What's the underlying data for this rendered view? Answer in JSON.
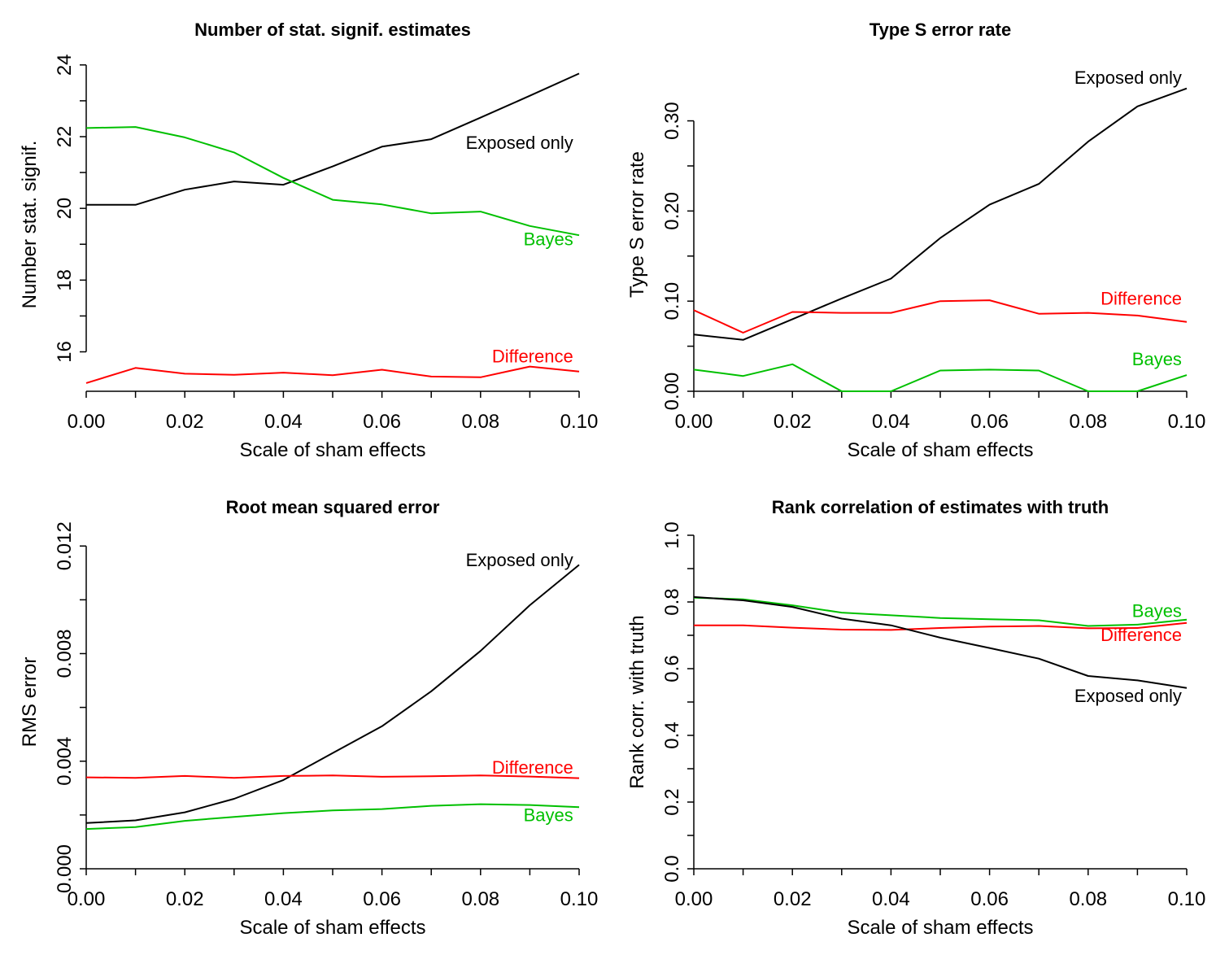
{
  "colors": {
    "exposed": "#000000",
    "bayes": "#00c000",
    "difference": "#ff0000"
  },
  "chart_data": [
    {
      "type": "line",
      "title": "Number of stat. signif. estimates",
      "xlabel": "Scale of sham effects",
      "ylabel": "Number stat. signif.",
      "xlim": [
        0,
        0.1
      ],
      "ylim": [
        14.9,
        24.2
      ],
      "xticks": [
        0,
        0.02,
        0.04,
        0.06,
        0.08,
        0.1
      ],
      "xtick_labels": [
        "0.00",
        "0.02",
        "0.04",
        "0.06",
        "0.08",
        "0.10"
      ],
      "yticks": [
        16,
        18,
        20,
        22,
        24
      ],
      "ytick_labels": [
        "16",
        "18",
        "20",
        "22",
        "24"
      ],
      "x": [
        0,
        0.01,
        0.02,
        0.03,
        0.04,
        0.05,
        0.06,
        0.07,
        0.08,
        0.09,
        0.1
      ],
      "series": [
        {
          "name": "Exposed only",
          "color_key": "exposed",
          "values": [
            20.1,
            20.1,
            20.52,
            20.75,
            20.66,
            21.17,
            21.72,
            21.93,
            22.53,
            23.14,
            23.76
          ]
        },
        {
          "name": "Bayes",
          "color_key": "bayes",
          "values": [
            22.24,
            22.27,
            21.98,
            21.56,
            20.85,
            20.24,
            20.11,
            19.86,
            19.91,
            19.51,
            19.25
          ]
        },
        {
          "name": "Difference",
          "color_key": "difference",
          "values": [
            15.13,
            15.55,
            15.39,
            15.36,
            15.42,
            15.35,
            15.5,
            15.31,
            15.29,
            15.59,
            15.45
          ]
        }
      ]
    },
    {
      "type": "line",
      "title": "Type S error rate",
      "xlabel": "Scale of sham effects",
      "ylabel": "Type S error rate",
      "xlim": [
        0,
        0.1
      ],
      "ylim": [
        0,
        0.37
      ],
      "xticks": [
        0,
        0.02,
        0.04,
        0.06,
        0.08,
        0.1
      ],
      "xtick_labels": [
        "0.00",
        "0.02",
        "0.04",
        "0.06",
        "0.08",
        "0.10"
      ],
      "yticks": [
        0,
        0.1,
        0.2,
        0.3
      ],
      "ytick_labels": [
        "0.00",
        "0.10",
        "0.20",
        "0.30"
      ],
      "x": [
        0,
        0.01,
        0.02,
        0.03,
        0.04,
        0.05,
        0.06,
        0.07,
        0.08,
        0.09,
        0.1
      ],
      "series": [
        {
          "name": "Exposed only",
          "color_key": "exposed",
          "values": [
            0.063,
            0.057,
            0.08,
            0.103,
            0.125,
            0.17,
            0.207,
            0.23,
            0.277,
            0.316,
            0.336
          ]
        },
        {
          "name": "Difference",
          "color_key": "difference",
          "values": [
            0.09,
            0.065,
            0.088,
            0.087,
            0.087,
            0.1,
            0.101,
            0.086,
            0.087,
            0.084,
            0.077
          ]
        },
        {
          "name": "Bayes",
          "color_key": "bayes",
          "values": [
            0.024,
            0.017,
            0.03,
            0,
            0,
            0.023,
            0.024,
            0.023,
            0,
            0,
            0.018
          ]
        }
      ]
    },
    {
      "type": "line",
      "title": "Root mean squared error",
      "xlabel": "Scale of sham effects",
      "ylabel": "RMS error",
      "xlim": [
        0,
        0.1
      ],
      "ylim": [
        0,
        0.0124
      ],
      "xticks": [
        0,
        0.02,
        0.04,
        0.06,
        0.08,
        0.1
      ],
      "xtick_labels": [
        "0.00",
        "0.02",
        "0.04",
        "0.06",
        "0.08",
        "0.10"
      ],
      "yticks": [
        0,
        0.004,
        0.008,
        0.012
      ],
      "ytick_labels": [
        "0.000",
        "0.004",
        "0.008",
        "0.012"
      ],
      "x": [
        0,
        0.01,
        0.02,
        0.03,
        0.04,
        0.05,
        0.06,
        0.07,
        0.08,
        0.09,
        0.1
      ],
      "series": [
        {
          "name": "Exposed only",
          "color_key": "exposed",
          "values": [
            0.0017,
            0.0018,
            0.0021,
            0.0026,
            0.0033,
            0.0043,
            0.0053,
            0.0066,
            0.0081,
            0.0098,
            0.0113
          ]
        },
        {
          "name": "Difference",
          "color_key": "difference",
          "values": [
            0.0034,
            0.00338,
            0.00345,
            0.00338,
            0.00345,
            0.00347,
            0.00342,
            0.00344,
            0.00347,
            0.00343,
            0.00337
          ]
        },
        {
          "name": "Bayes",
          "color_key": "bayes",
          "values": [
            0.00148,
            0.00155,
            0.00178,
            0.00193,
            0.00207,
            0.00217,
            0.00222,
            0.00234,
            0.0024,
            0.00237,
            0.00229
          ]
        }
      ]
    },
    {
      "type": "line",
      "title": "Rank correlation of estimates with truth",
      "xlabel": "Scale of sham effects",
      "ylabel": "Rank corr. with truth",
      "xlim": [
        0,
        0.1
      ],
      "ylim": [
        0,
        1
      ],
      "xticks": [
        0,
        0.02,
        0.04,
        0.06,
        0.08,
        0.1
      ],
      "xtick_labels": [
        "0.00",
        "0.02",
        "0.04",
        "0.06",
        "0.08",
        "0.10"
      ],
      "yticks": [
        0,
        0.2,
        0.4,
        0.6,
        0.8,
        1
      ],
      "ytick_labels": [
        "0.0",
        "0.2",
        "0.4",
        "0.6",
        "0.8",
        "1.0"
      ],
      "x": [
        0,
        0.01,
        0.02,
        0.03,
        0.04,
        0.05,
        0.06,
        0.07,
        0.08,
        0.09,
        0.1
      ],
      "series": [
        {
          "name": "Bayes",
          "color_key": "bayes",
          "values": [
            0.813,
            0.808,
            0.79,
            0.768,
            0.76,
            0.752,
            0.748,
            0.745,
            0.728,
            0.732,
            0.747
          ]
        },
        {
          "name": "Difference",
          "color_key": "difference",
          "values": [
            0.73,
            0.73,
            0.723,
            0.717,
            0.716,
            0.722,
            0.726,
            0.728,
            0.721,
            0.722,
            0.737
          ]
        },
        {
          "name": "Exposed only",
          "color_key": "exposed",
          "values": [
            0.815,
            0.805,
            0.785,
            0.75,
            0.73,
            0.693,
            0.662,
            0.63,
            0.578,
            0.565,
            0.542
          ]
        }
      ]
    }
  ]
}
